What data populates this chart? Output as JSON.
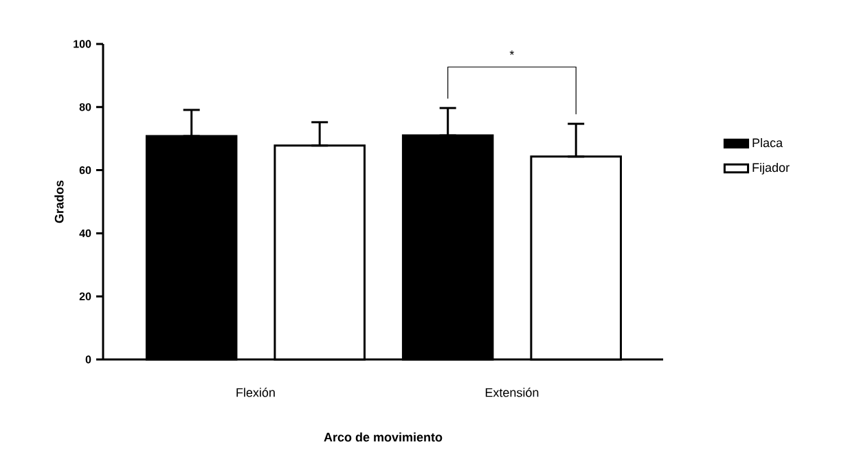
{
  "chart_data": {
    "type": "bar",
    "ylabel": "Grados",
    "xlabel": "Arco de movimiento",
    "categories": [
      "Flexión",
      "Extensión"
    ],
    "series": [
      {
        "name": "Placa",
        "color": "#000000",
        "values": [
          70.8,
          71.0
        ],
        "errors": [
          [
            70.8,
            79.1
          ],
          [
            71.0,
            79.7
          ]
        ]
      },
      {
        "name": "Fijador",
        "color": "#ffffff",
        "values": [
          67.8,
          64.3
        ],
        "errors": [
          [
            67.8,
            75.2
          ],
          [
            64.3,
            74.7
          ]
        ]
      }
    ],
    "ylim": [
      0,
      100
    ],
    "yticks": [
      0,
      20,
      40,
      60,
      80,
      100
    ],
    "grid": false,
    "legend": "right",
    "annotations": [
      "*"
    ]
  }
}
